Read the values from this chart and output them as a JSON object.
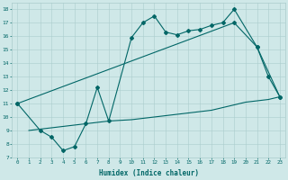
{
  "xlabel": "Humidex (Indice chaleur)",
  "bg_color": "#cfe8e8",
  "grid_color": "#aacccc",
  "line_color": "#006666",
  "xlim": [
    0,
    23
  ],
  "ylim": [
    7,
    18
  ],
  "xticks": [
    0,
    1,
    2,
    3,
    4,
    5,
    6,
    7,
    8,
    9,
    10,
    11,
    12,
    13,
    14,
    15,
    16,
    17,
    18,
    19,
    20,
    21,
    22,
    23
  ],
  "yticks": [
    7,
    8,
    9,
    10,
    11,
    12,
    13,
    14,
    15,
    16,
    17,
    18
  ],
  "line1_x": [
    0,
    2,
    3,
    4,
    5,
    6,
    7,
    8,
    10,
    11,
    12,
    13,
    14,
    15,
    16,
    17,
    18,
    19,
    21,
    22,
    23
  ],
  "line1_y": [
    11.0,
    9.0,
    8.5,
    7.5,
    7.8,
    9.5,
    12.2,
    9.7,
    15.9,
    17.0,
    17.5,
    16.3,
    16.1,
    16.4,
    16.5,
    16.8,
    17.0,
    18.0,
    15.2,
    13.0,
    11.5
  ],
  "line2_x": [
    0,
    19,
    21,
    23
  ],
  "line2_y": [
    11.0,
    17.0,
    15.2,
    11.5
  ],
  "line3_x": [
    1,
    2,
    3,
    4,
    5,
    6,
    7,
    8,
    9,
    10,
    11,
    12,
    13,
    14,
    15,
    16,
    17,
    18,
    19,
    20,
    21,
    22,
    23
  ],
  "line3_y": [
    9.0,
    9.1,
    9.2,
    9.3,
    9.4,
    9.5,
    9.6,
    9.7,
    9.75,
    9.8,
    9.9,
    10.0,
    10.1,
    10.2,
    10.3,
    10.4,
    10.5,
    10.7,
    10.9,
    11.1,
    11.2,
    11.3,
    11.5
  ],
  "figsize": [
    3.2,
    2.0
  ],
  "dpi": 100
}
